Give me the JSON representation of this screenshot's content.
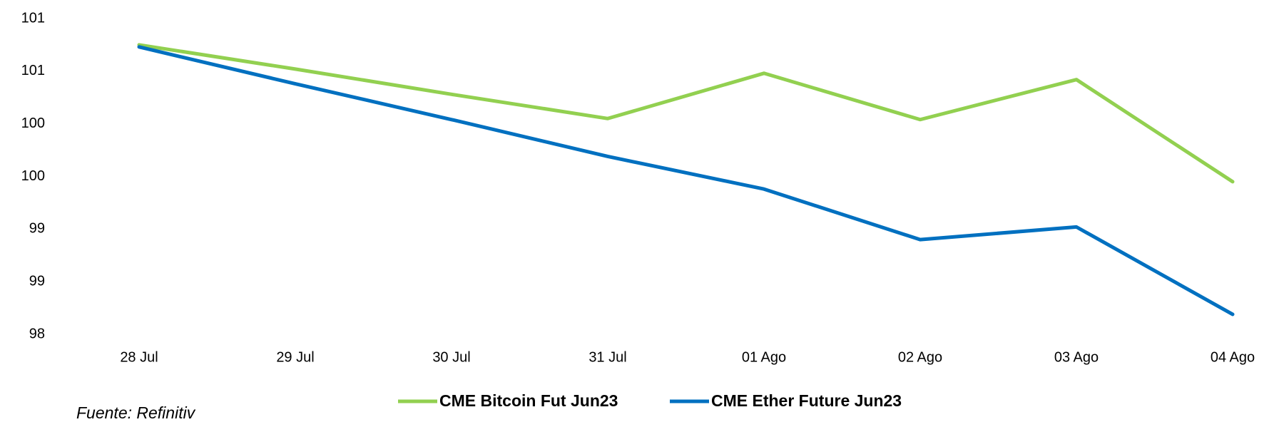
{
  "chart_data": {
    "type": "line",
    "categories": [
      "28 Jul",
      "29 Jul",
      "30 Jul",
      "31 Jul",
      "01 Ago",
      "02 Ago",
      "03 Ago",
      "04 Ago"
    ],
    "series": [
      {
        "name": "CME Bitcoin Fut Jun23",
        "color": "#92d050",
        "values": [
          100.75,
          100.52,
          100.28,
          100.05,
          100.48,
          100.04,
          100.42,
          99.45
        ]
      },
      {
        "name": "CME Ether Future Jun23",
        "color": "#0070c0",
        "values": [
          100.73,
          100.38,
          100.04,
          99.69,
          99.38,
          98.9,
          99.02,
          98.19
        ]
      }
    ],
    "ylim": [
      98,
      101
    ],
    "yticks": [
      98,
      {
        "value": 98.5,
        "label": "99"
      },
      99,
      {
        "value": 99.5,
        "label": "100"
      },
      100,
      {
        "value": 100.5,
        "label": "101"
      },
      101
    ],
    "grid": false,
    "legend": "bottom",
    "source": "Fuente: Refinitiv"
  }
}
